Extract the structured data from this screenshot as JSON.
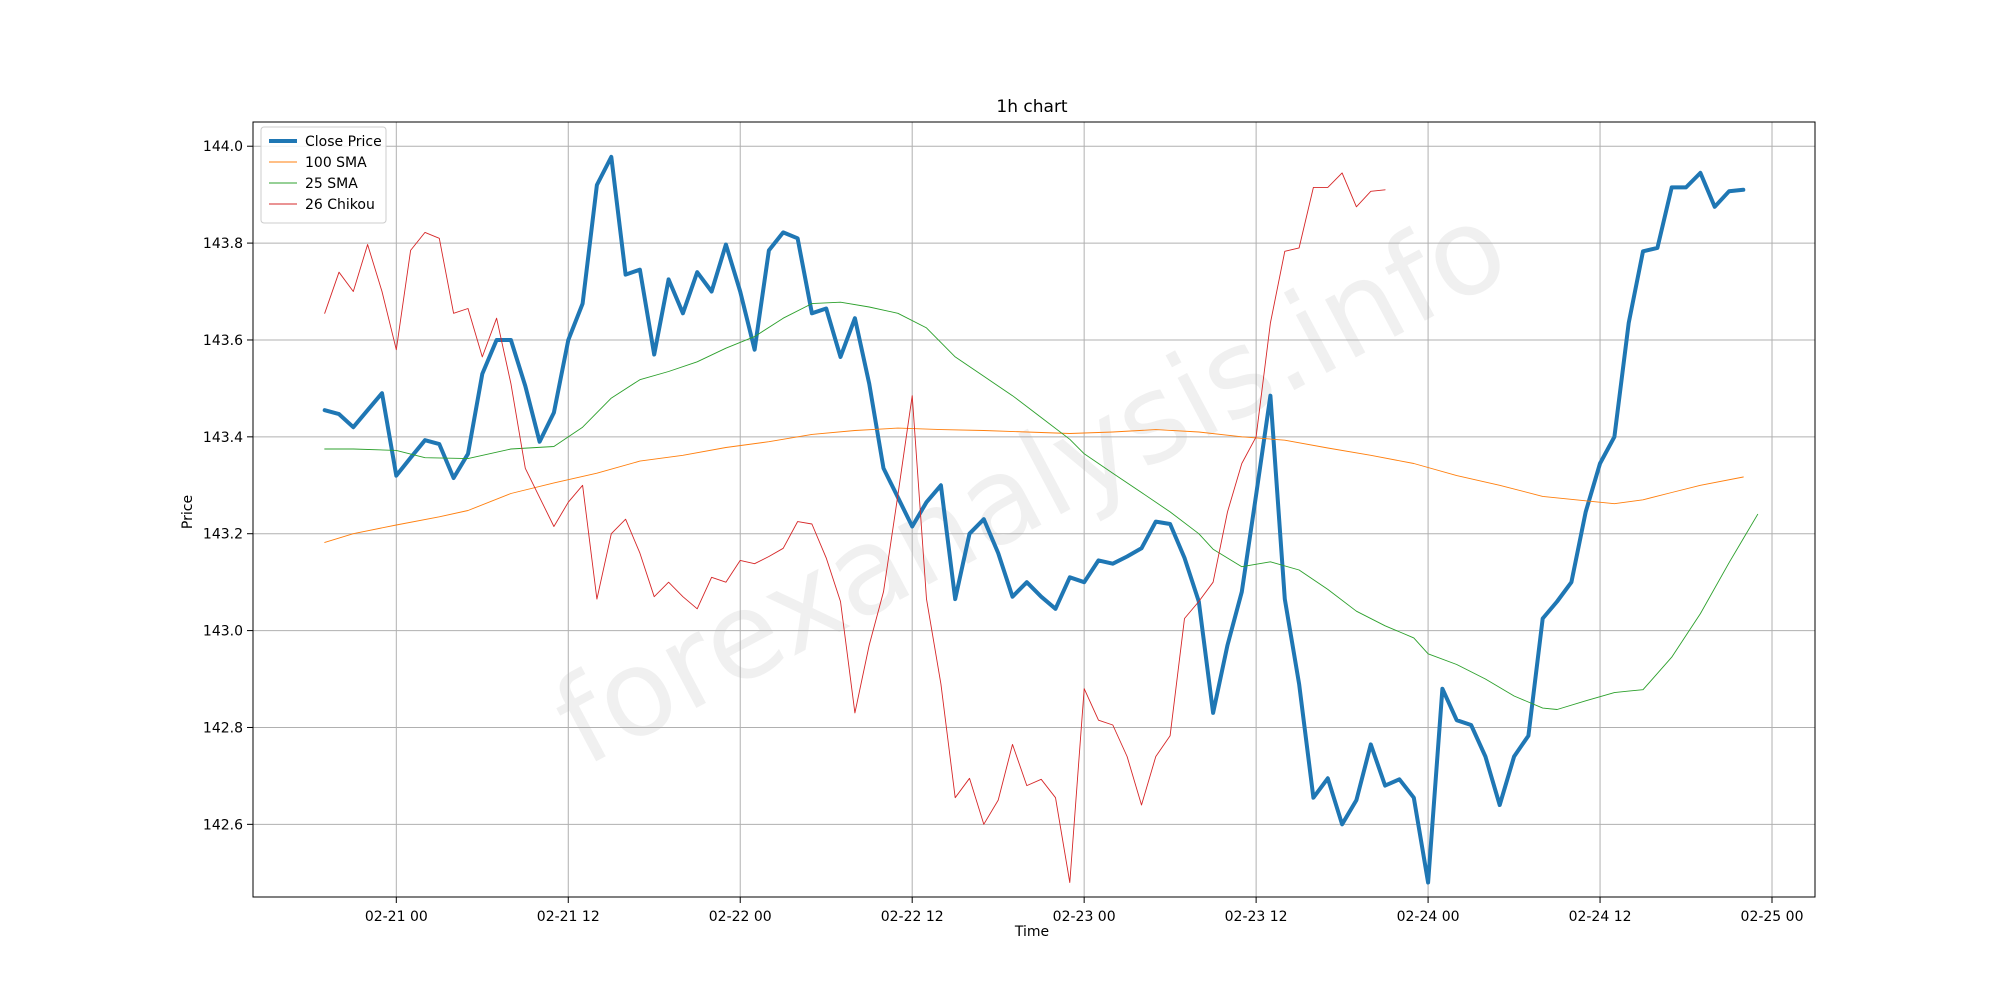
{
  "chart_data": {
    "type": "line",
    "title": "1h chart",
    "xlabel": "Time",
    "ylabel": "Price",
    "x_tick_labels": [
      "02-21 00",
      "02-21 12",
      "02-22 00",
      "02-22 12",
      "02-23 00",
      "02-23 12",
      "02-24 00",
      "02-24 12",
      "02-25 00"
    ],
    "y_tick_labels": [
      "142.6",
      "142.8",
      "143.0",
      "143.2",
      "143.4",
      "143.6",
      "143.8",
      "144.0"
    ],
    "x_tick_hours": [
      0,
      12,
      24,
      36,
      48,
      60,
      72,
      84,
      96
    ],
    "y_ticks": [
      142.6,
      142.8,
      143.0,
      143.2,
      143.4,
      143.6,
      143.8,
      144.0
    ],
    "xlim_hours": [
      -10,
      99
    ],
    "ylim": [
      142.45,
      144.05
    ],
    "grid": true,
    "legend_position": "top-left",
    "series": [
      {
        "name": "Close Price",
        "color": "#1f77b4",
        "width": "thick",
        "points": [
          [
            -5,
            143.455
          ],
          [
            -4,
            143.447
          ],
          [
            -3,
            143.42
          ],
          [
            -2,
            143.455
          ],
          [
            -1,
            143.49
          ],
          [
            0,
            143.32
          ],
          [
            1,
            143.357
          ],
          [
            2,
            143.393
          ],
          [
            3,
            143.385
          ],
          [
            4,
            143.315
          ],
          [
            5,
            143.365
          ],
          [
            6,
            143.53
          ],
          [
            7,
            143.6
          ],
          [
            8,
            143.6
          ],
          [
            9,
            143.505
          ],
          [
            10,
            143.39
          ],
          [
            11,
            143.45
          ],
          [
            12,
            143.6
          ],
          [
            13,
            143.675
          ],
          [
            14,
            143.92
          ],
          [
            15,
            143.978
          ],
          [
            16,
            143.735
          ],
          [
            17,
            143.745
          ],
          [
            18,
            143.57
          ],
          [
            19,
            143.725
          ],
          [
            20,
            143.655
          ],
          [
            21,
            143.74
          ],
          [
            22,
            143.7
          ],
          [
            23,
            143.797
          ],
          [
            24,
            143.7
          ],
          [
            25,
            143.58
          ],
          [
            26,
            143.785
          ],
          [
            27,
            143.822
          ],
          [
            28,
            143.81
          ],
          [
            29,
            143.655
          ],
          [
            30,
            143.665
          ],
          [
            31,
            143.565
          ],
          [
            32,
            143.645
          ],
          [
            33,
            143.51
          ],
          [
            34,
            143.335
          ],
          [
            35,
            143.275
          ],
          [
            36,
            143.215
          ],
          [
            37,
            143.265
          ],
          [
            38,
            143.3
          ],
          [
            39,
            143.065
          ],
          [
            40,
            143.2
          ],
          [
            41,
            143.23
          ],
          [
            42,
            143.16
          ],
          [
            43,
            143.07
          ],
          [
            44,
            143.1
          ],
          [
            45,
            143.07
          ],
          [
            46,
            143.045
          ],
          [
            47,
            143.11
          ],
          [
            48,
            143.1
          ],
          [
            49,
            143.145
          ],
          [
            50,
            143.138
          ],
          [
            51,
            143.153
          ],
          [
            52,
            143.17
          ],
          [
            53,
            143.225
          ],
          [
            54,
            143.22
          ],
          [
            55,
            143.15
          ],
          [
            56,
            143.06
          ],
          [
            57,
            142.83
          ],
          [
            58,
            142.97
          ],
          [
            59,
            143.08
          ],
          [
            60,
            143.28
          ],
          [
            61,
            143.485
          ],
          [
            62,
            143.065
          ],
          [
            63,
            142.89
          ],
          [
            64,
            142.655
          ],
          [
            65,
            142.695
          ],
          [
            66,
            142.6
          ],
          [
            67,
            142.65
          ],
          [
            68,
            142.765
          ],
          [
            69,
            142.68
          ],
          [
            70,
            142.693
          ],
          [
            71,
            142.655
          ],
          [
            72,
            142.48
          ],
          [
            73,
            142.88
          ],
          [
            74,
            142.815
          ],
          [
            75,
            142.805
          ],
          [
            76,
            142.74
          ],
          [
            77,
            142.64
          ],
          [
            78,
            142.74
          ],
          [
            79,
            142.783
          ],
          [
            80,
            143.025
          ],
          [
            81,
            143.06
          ],
          [
            82,
            143.1
          ],
          [
            83,
            143.245
          ],
          [
            84,
            143.345
          ],
          [
            85,
            143.4
          ],
          [
            86,
            143.635
          ],
          [
            87,
            143.783
          ],
          [
            88,
            143.79
          ],
          [
            89,
            143.915
          ],
          [
            90,
            143.915
          ],
          [
            91,
            143.945
          ],
          [
            92,
            143.875
          ],
          [
            93,
            143.907
          ],
          [
            94,
            143.91
          ]
        ]
      },
      {
        "name": "100 SMA",
        "color": "#ff7f0e",
        "width": "thin",
        "points": [
          [
            -5,
            143.182
          ],
          [
            -3,
            143.2
          ],
          [
            0,
            143.218
          ],
          [
            3,
            143.235
          ],
          [
            5,
            143.248
          ],
          [
            8,
            143.283
          ],
          [
            11,
            143.305
          ],
          [
            14,
            143.325
          ],
          [
            17,
            143.35
          ],
          [
            20,
            143.362
          ],
          [
            23,
            143.378
          ],
          [
            26,
            143.39
          ],
          [
            29,
            143.405
          ],
          [
            32,
            143.413
          ],
          [
            35,
            143.418
          ],
          [
            38,
            143.415
          ],
          [
            41,
            143.413
          ],
          [
            44,
            143.41
          ],
          [
            47,
            143.407
          ],
          [
            50,
            143.41
          ],
          [
            53,
            143.415
          ],
          [
            56,
            143.41
          ],
          [
            59,
            143.4
          ],
          [
            62,
            143.393
          ],
          [
            65,
            143.377
          ],
          [
            68,
            143.362
          ],
          [
            71,
            143.345
          ],
          [
            74,
            143.32
          ],
          [
            77,
            143.3
          ],
          [
            80,
            143.277
          ],
          [
            83,
            143.268
          ],
          [
            85,
            143.262
          ],
          [
            87,
            143.27
          ],
          [
            89,
            143.285
          ],
          [
            91,
            143.3
          ],
          [
            94,
            143.317
          ]
        ]
      },
      {
        "name": "25 SMA",
        "color": "#2ca02c",
        "width": "thin",
        "points": [
          [
            -5,
            143.375
          ],
          [
            -3,
            143.375
          ],
          [
            0,
            143.372
          ],
          [
            2,
            143.357
          ],
          [
            5,
            143.355
          ],
          [
            8,
            143.375
          ],
          [
            11,
            143.38
          ],
          [
            13,
            143.42
          ],
          [
            15,
            143.48
          ],
          [
            17,
            143.518
          ],
          [
            19,
            143.535
          ],
          [
            21,
            143.555
          ],
          [
            23,
            143.583
          ],
          [
            25,
            143.607
          ],
          [
            27,
            143.645
          ],
          [
            29,
            143.675
          ],
          [
            31,
            143.678
          ],
          [
            33,
            143.668
          ],
          [
            35,
            143.655
          ],
          [
            37,
            143.625
          ],
          [
            39,
            143.565
          ],
          [
            41,
            143.525
          ],
          [
            43,
            143.485
          ],
          [
            45,
            143.44
          ],
          [
            47,
            143.395
          ],
          [
            48,
            143.365
          ],
          [
            50,
            143.325
          ],
          [
            52,
            143.285
          ],
          [
            54,
            143.245
          ],
          [
            56,
            143.2
          ],
          [
            57,
            143.168
          ],
          [
            59,
            143.132
          ],
          [
            61,
            143.142
          ],
          [
            63,
            143.125
          ],
          [
            65,
            143.085
          ],
          [
            67,
            143.04
          ],
          [
            69,
            143.01
          ],
          [
            71,
            142.985
          ],
          [
            72,
            142.952
          ],
          [
            74,
            142.93
          ],
          [
            76,
            142.9
          ],
          [
            78,
            142.865
          ],
          [
            80,
            142.84
          ],
          [
            81,
            142.837
          ],
          [
            83,
            142.855
          ],
          [
            85,
            142.872
          ],
          [
            86,
            142.875
          ],
          [
            87,
            142.878
          ],
          [
            89,
            142.945
          ],
          [
            91,
            143.035
          ],
          [
            93,
            143.14
          ],
          [
            94,
            143.19
          ],
          [
            95,
            143.24
          ]
        ]
      },
      {
        "name": "26 Chikou",
        "color": "#d62728",
        "width": "thin",
        "points": [
          [
            -5,
            143.655
          ],
          [
            -4,
            143.74
          ],
          [
            -3,
            143.7
          ],
          [
            -2,
            143.797
          ],
          [
            -1,
            143.7
          ],
          [
            0,
            143.58
          ],
          [
            1,
            143.785
          ],
          [
            2,
            143.822
          ],
          [
            3,
            143.81
          ],
          [
            4,
            143.655
          ],
          [
            5,
            143.665
          ],
          [
            6,
            143.565
          ],
          [
            7,
            143.645
          ],
          [
            8,
            143.51
          ],
          [
            9,
            143.335
          ],
          [
            10,
            143.275
          ],
          [
            11,
            143.215
          ],
          [
            12,
            143.265
          ],
          [
            13,
            143.3
          ],
          [
            14,
            143.065
          ],
          [
            15,
            143.2
          ],
          [
            16,
            143.23
          ],
          [
            17,
            143.16
          ],
          [
            18,
            143.07
          ],
          [
            19,
            143.1
          ],
          [
            20,
            143.07
          ],
          [
            21,
            143.045
          ],
          [
            22,
            143.11
          ],
          [
            23,
            143.1
          ],
          [
            24,
            143.145
          ],
          [
            25,
            143.138
          ],
          [
            26,
            143.153
          ],
          [
            27,
            143.17
          ],
          [
            28,
            143.225
          ],
          [
            29,
            143.22
          ],
          [
            30,
            143.15
          ],
          [
            31,
            143.06
          ],
          [
            32,
            142.83
          ],
          [
            33,
            142.97
          ],
          [
            34,
            143.08
          ],
          [
            35,
            143.28
          ],
          [
            36,
            143.485
          ],
          [
            37,
            143.065
          ],
          [
            38,
            142.89
          ],
          [
            39,
            142.655
          ],
          [
            40,
            142.695
          ],
          [
            41,
            142.6
          ],
          [
            42,
            142.65
          ],
          [
            43,
            142.765
          ],
          [
            44,
            142.68
          ],
          [
            45,
            142.693
          ],
          [
            46,
            142.655
          ],
          [
            47,
            142.48
          ],
          [
            48,
            142.88
          ],
          [
            49,
            142.815
          ],
          [
            50,
            142.805
          ],
          [
            51,
            142.74
          ],
          [
            52,
            142.64
          ],
          [
            53,
            142.74
          ],
          [
            54,
            142.783
          ],
          [
            55,
            143.025
          ],
          [
            56,
            143.06
          ],
          [
            57,
            143.1
          ],
          [
            58,
            143.245
          ],
          [
            59,
            143.345
          ],
          [
            60,
            143.4
          ],
          [
            61,
            143.635
          ],
          [
            62,
            143.783
          ],
          [
            63,
            143.79
          ],
          [
            64,
            143.915
          ],
          [
            65,
            143.915
          ],
          [
            66,
            143.945
          ],
          [
            67,
            143.875
          ],
          [
            68,
            143.907
          ],
          [
            69,
            143.91
          ]
        ]
      }
    ]
  },
  "watermark": "forexanalysis.info"
}
